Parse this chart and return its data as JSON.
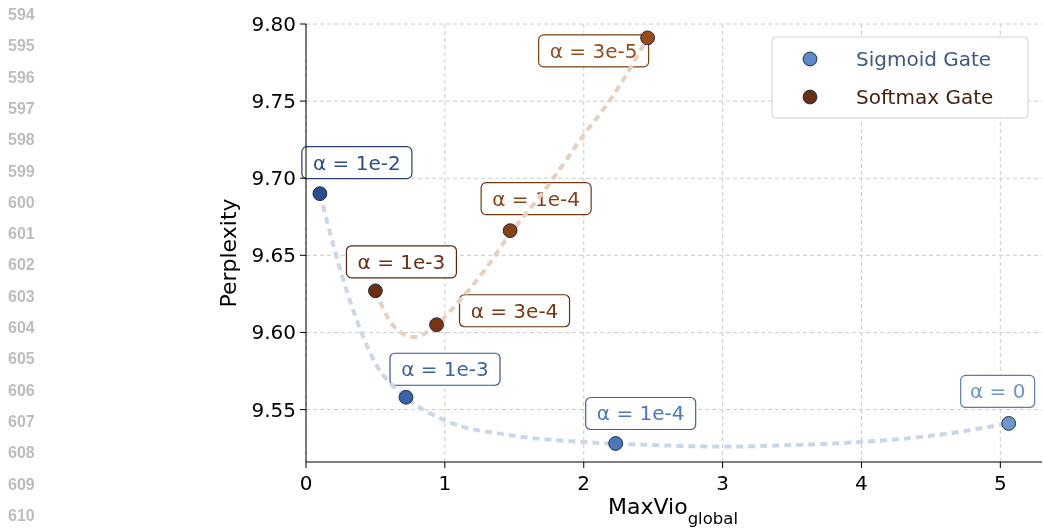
{
  "chart_data": {
    "type": "scatter",
    "xlabel": "MaxVio$_{global}$",
    "ylabel": "Perplexity",
    "xlim": [
      0,
      5.3
    ],
    "ylim": [
      9.516,
      9.8
    ],
    "xticks": [
      0,
      1,
      2,
      3,
      4,
      5
    ],
    "yticks": [
      {
        "value": 9.55,
        "label": "9.55"
      },
      {
        "value": 9.6,
        "label": "9.60"
      },
      {
        "value": 9.65,
        "label": "9.65"
      },
      {
        "value": 9.7,
        "label": "9.70"
      },
      {
        "value": 9.75,
        "label": "9.75"
      },
      {
        "value": 9.8,
        "label": "9.80"
      }
    ],
    "grid": true,
    "legend": "top right",
    "marker": "circle",
    "series": [
      {
        "type": "line",
        "color": "#cad6e9",
        "line_style": "dashed",
        "marker": "none",
        "x": [
          0.1,
          0.3,
          0.5,
          0.72,
          1,
          1.5,
          2,
          2.5,
          3,
          3.5,
          4,
          4.5,
          5.06
        ],
        "values": [
          9.69,
          9.625,
          9.58,
          9.558,
          9.543,
          9.533,
          9.529,
          9.527,
          9.526,
          9.527,
          9.529,
          9.533,
          9.541
        ]
      },
      {
        "type": "line",
        "color": "#e8d0bf",
        "line_style": "dashed",
        "marker": "none",
        "x": [
          0.5,
          0.6,
          0.7,
          0.78,
          0.94,
          1.1,
          1.3,
          1.47,
          1.7,
          2,
          2.2,
          2.46
        ],
        "values": [
          9.627,
          9.608,
          9.599,
          9.597,
          9.605,
          9.62,
          9.642,
          9.664,
          9.69,
          9.728,
          9.752,
          9.791
        ]
      },
      {
        "name": "Sigmoid Gate",
        "color": "#5b8ac6",
        "colors": [
          "#2a4d8f",
          "#3a64a8",
          "#4a78bb",
          "#6a96cc"
        ],
        "x": [
          0.1,
          0.72,
          2.23,
          5.06
        ],
        "values": [
          9.69,
          9.558,
          9.528,
          9.541
        ]
      },
      {
        "name": "Softmax Gate",
        "color": "#6b2e0e",
        "colors": [
          "#6b2e0e",
          "#7a3510",
          "#8a4215",
          "#9a4a18"
        ],
        "x": [
          0.5,
          0.94,
          1.47,
          2.46
        ],
        "values": [
          9.627,
          9.605,
          9.666,
          9.791
        ]
      }
    ],
    "annotations": [
      "594",
      "595",
      "596",
      "597",
      "598",
      "599",
      "600",
      "601",
      "602",
      "603",
      "604",
      "605",
      "606",
      "607",
      "608",
      "609",
      "610",
      {
        "text": "α = 1e-2",
        "x": 0.1,
        "y": 9.69
      },
      {
        "text": "α = 1e-3",
        "x": 0.72,
        "y": 9.558
      },
      {
        "text": "α = 1e-4",
        "x": 2.23,
        "y": 9.528
      },
      {
        "text": "α = 0",
        "x": 5.06,
        "y": 9.541
      },
      {
        "text": "α = 1e-3",
        "x": 0.5,
        "y": 9.627
      },
      {
        "text": "α = 3e-4",
        "x": 0.94,
        "y": 9.605
      },
      {
        "text": "α = 1e-4",
        "x": 1.47,
        "y": 9.666
      },
      {
        "text": "α = 3e-5",
        "x": 2.46,
        "y": 9.791
      }
    ]
  }
}
